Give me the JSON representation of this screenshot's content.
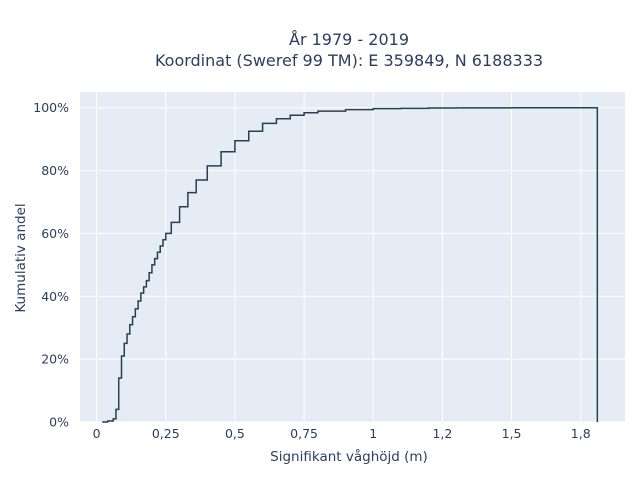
{
  "chart_data": {
    "type": "line",
    "line_shape": "step-ecdf",
    "title": "År 1979 - 2019",
    "subtitle": "Koordinat (Sweref 99 TM): E 359849, N 6188333",
    "xlabel": "Signifikant våghöjd (m)",
    "ylabel": "Kumulativ andel",
    "xlim": [
      -0.06,
      1.91
    ],
    "ylim": [
      0,
      1.05
    ],
    "x_ticks": [
      0,
      0.25,
      0.5,
      0.75,
      1,
      1.25,
      1.5,
      1.75
    ],
    "x_tick_labels": [
      "0",
      "0,25",
      "0,5",
      "0,75",
      "1",
      "1,2",
      "1,5",
      "1,8"
    ],
    "y_ticks": [
      0,
      0.2,
      0.4,
      0.6,
      0.8,
      1.0
    ],
    "y_tick_labels": [
      "0%",
      "20%",
      "40%",
      "60%",
      "80%",
      "100%"
    ],
    "grid": true,
    "legend": "none",
    "series": [
      {
        "color": "#2a3f4f",
        "x": [
          0.02,
          0.04,
          0.06,
          0.07,
          0.08,
          0.09,
          0.1,
          0.11,
          0.12,
          0.13,
          0.14,
          0.15,
          0.16,
          0.17,
          0.18,
          0.19,
          0.2,
          0.21,
          0.22,
          0.23,
          0.24,
          0.25,
          0.27,
          0.3,
          0.33,
          0.36,
          0.4,
          0.45,
          0.5,
          0.55,
          0.6,
          0.65,
          0.7,
          0.75,
          0.8,
          0.9,
          1.0,
          1.1,
          1.2,
          1.3,
          1.5,
          1.7,
          1.8,
          1.81
        ],
        "y": [
          0.0,
          0.003,
          0.01,
          0.04,
          0.14,
          0.21,
          0.25,
          0.28,
          0.31,
          0.335,
          0.36,
          0.385,
          0.41,
          0.43,
          0.45,
          0.475,
          0.5,
          0.52,
          0.54,
          0.56,
          0.58,
          0.6,
          0.635,
          0.685,
          0.73,
          0.77,
          0.815,
          0.86,
          0.895,
          0.925,
          0.95,
          0.965,
          0.976,
          0.984,
          0.989,
          0.994,
          0.997,
          0.998,
          0.999,
          0.9995,
          1.0,
          1.0,
          1.0,
          0.0
        ]
      }
    ]
  }
}
